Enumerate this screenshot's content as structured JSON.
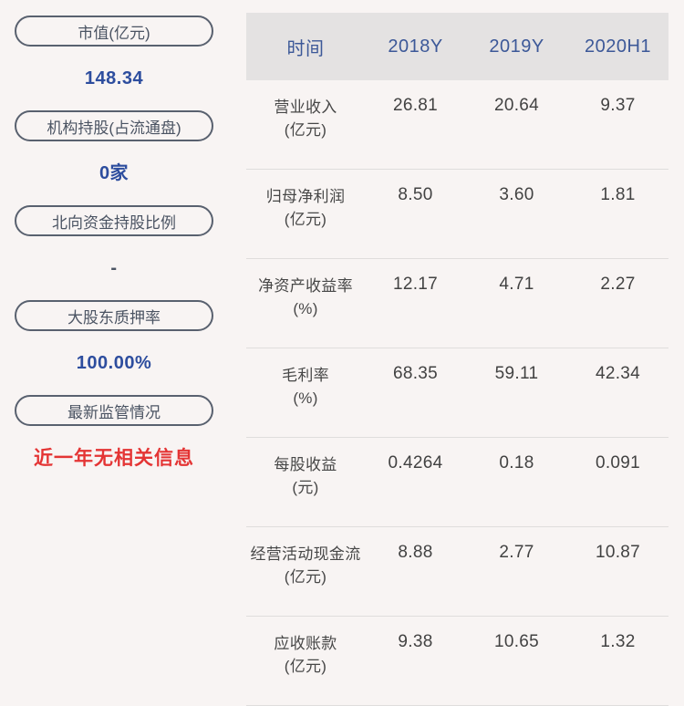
{
  "sidebar": {
    "items": [
      {
        "label": "市值(亿元)",
        "value": "148.34",
        "value_color": "#2d4d9e"
      },
      {
        "label": "机构持股(占流通盘)",
        "value": "0家",
        "value_color": "#2d4d9e"
      },
      {
        "label": "北向资金持股比例",
        "value": "-",
        "value_color": "#4b5463"
      },
      {
        "label": "大股东质押率",
        "value": "100.00%",
        "value_color": "#2d4d9e"
      },
      {
        "label": "最新监管情况",
        "value": "近一年无相关信息",
        "value_color": "#e43434"
      }
    ]
  },
  "table": {
    "columns": [
      "时间",
      "2018Y",
      "2019Y",
      "2020H1"
    ],
    "rows": [
      {
        "name": "营业收入",
        "unit": "(亿元)",
        "values": [
          "26.81",
          "20.64",
          "9.37"
        ]
      },
      {
        "name": "归母净利润",
        "unit": "(亿元)",
        "values": [
          "8.50",
          "3.60",
          "1.81"
        ]
      },
      {
        "name": "净资产收益率",
        "unit": "(%)",
        "values": [
          "12.17",
          "4.71",
          "2.27"
        ]
      },
      {
        "name": "毛利率",
        "unit": "(%)",
        "values": [
          "68.35",
          "59.11",
          "42.34"
        ]
      },
      {
        "name": "每股收益",
        "unit": "(元)",
        "values": [
          "0.4264",
          "0.18",
          "0.091"
        ]
      },
      {
        "name": "经营活动现金流",
        "unit": "(亿元)",
        "values": [
          "8.88",
          "2.77",
          "10.87"
        ]
      },
      {
        "name": "应收账款",
        "unit": "(亿元)",
        "values": [
          "9.38",
          "10.65",
          "1.32"
        ]
      }
    ]
  },
  "colors": {
    "accent_blue": "#2d4d9e",
    "status_red": "#e43434",
    "header_blue": "#3c5898",
    "pill_border": "#59616f"
  }
}
